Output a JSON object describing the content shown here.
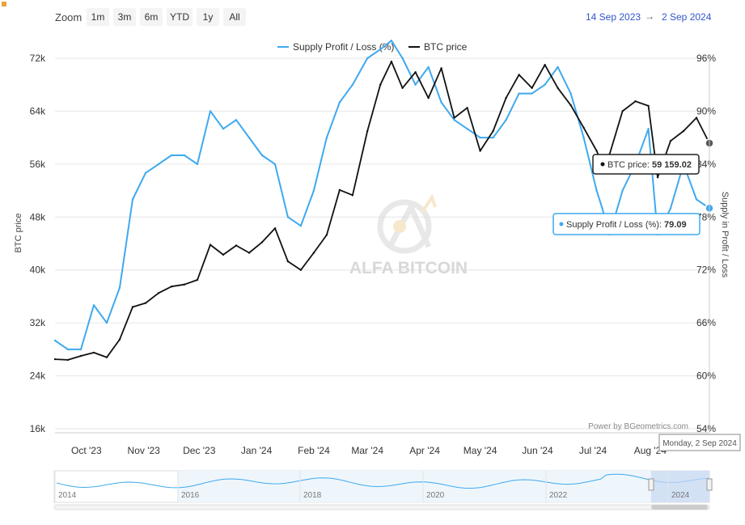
{
  "toolbar": {
    "zoom_label": "Zoom",
    "buttons": [
      "1m",
      "3m",
      "6m",
      "YTD",
      "1y",
      "All"
    ],
    "range_from": "14 Sep 2023",
    "range_to": "2 Sep 2024"
  },
  "colors": {
    "supply": "#3fa9ef",
    "price": "#111111",
    "navigator": "#3fa9ef",
    "range_text": "#3355cc"
  },
  "watermark": "ALFA BITCOIN",
  "credit": "Power by BGeometrics.com",
  "tooltips": {
    "price_label": "BTC price: ",
    "price_value": "59 159.02",
    "supply_label": "Supply Profit / Loss (%): ",
    "supply_value": "79.09",
    "date": "Monday, 2 Sep 2024"
  },
  "navigator": {
    "years": [
      "2014",
      "2016",
      "2018",
      "2020",
      "2022",
      "2024"
    ]
  },
  "chart_data": {
    "type": "line",
    "xlabel": "",
    "ylabel": "BTC price",
    "ylabel_right": "Supply in Profit / Loss",
    "x_ticks": [
      "Oct '23",
      "Nov '23",
      "Dec '23",
      "Jan '24",
      "Feb '24",
      "Mar '24",
      "Apr '24",
      "May '24",
      "Jun '24",
      "Jul '24",
      "Aug '24"
    ],
    "y_ticks": [
      "16k",
      "24k",
      "32k",
      "40k",
      "48k",
      "56k",
      "64k",
      "72k"
    ],
    "y2_ticks": [
      "54%",
      "60%",
      "66%",
      "72%",
      "78%",
      "84%",
      "90%",
      "96%"
    ],
    "ylim": [
      16000,
      72000
    ],
    "y2lim": [
      54,
      96
    ],
    "legend": {
      "placement": "top-center",
      "entries": [
        "Supply Profit / Loss (%)",
        "BTC price"
      ]
    },
    "grid": true,
    "x": [
      "2023-09-14",
      "2023-09-21",
      "2023-09-28",
      "2023-10-05",
      "2023-10-12",
      "2023-10-19",
      "2023-10-26",
      "2023-11-02",
      "2023-11-09",
      "2023-11-16",
      "2023-11-23",
      "2023-11-30",
      "2023-12-07",
      "2023-12-14",
      "2023-12-21",
      "2023-12-28",
      "2024-01-04",
      "2024-01-11",
      "2024-01-18",
      "2024-01-25",
      "2024-02-01",
      "2024-02-08",
      "2024-02-15",
      "2024-02-22",
      "2024-03-01",
      "2024-03-08",
      "2024-03-14",
      "2024-03-20",
      "2024-03-27",
      "2024-04-03",
      "2024-04-10",
      "2024-04-17",
      "2024-04-24",
      "2024-05-01",
      "2024-05-08",
      "2024-05-15",
      "2024-05-22",
      "2024-05-29",
      "2024-06-05",
      "2024-06-12",
      "2024-06-19",
      "2024-06-26",
      "2024-07-03",
      "2024-07-06",
      "2024-07-10",
      "2024-07-17",
      "2024-07-24",
      "2024-07-31",
      "2024-08-05",
      "2024-08-12",
      "2024-08-19",
      "2024-08-26",
      "2024-09-02"
    ],
    "series": [
      {
        "name": "Supply Profit / Loss (%)",
        "axis": "right",
        "values": [
          64,
          63,
          63,
          68,
          66,
          70,
          80,
          83,
          84,
          85,
          85,
          84,
          90,
          88,
          89,
          87,
          85,
          84,
          78,
          77,
          81,
          87,
          91,
          93,
          96,
          97,
          98,
          96,
          93,
          95,
          91,
          89,
          88,
          87,
          87,
          89,
          92,
          92,
          93,
          95,
          92,
          87,
          81,
          79,
          76,
          81,
          84,
          88,
          76,
          79,
          84,
          80,
          79
        ]
      },
      {
        "name": "BTC price",
        "axis": "left",
        "values": [
          26500,
          26400,
          27000,
          27500,
          26800,
          29500,
          34400,
          35000,
          36500,
          37500,
          37800,
          38500,
          43800,
          42300,
          43700,
          42600,
          44200,
          46300,
          41300,
          40000,
          42600,
          45300,
          52100,
          51300,
          61000,
          68000,
          71500,
          67500,
          69900,
          66000,
          70500,
          63000,
          64500,
          58000,
          61000,
          66000,
          69500,
          67500,
          71000,
          67500,
          64900,
          61500,
          58000,
          56000,
          57500,
          64000,
          65500,
          64800,
          54000,
          59500,
          61000,
          63000,
          59159.02
        ]
      }
    ]
  }
}
